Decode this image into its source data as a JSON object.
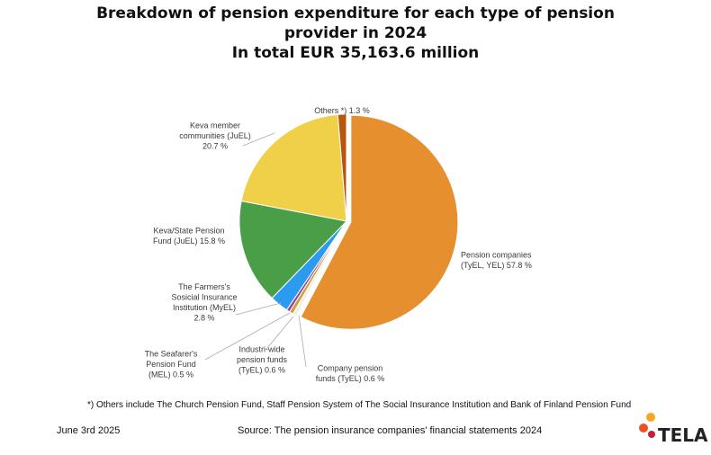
{
  "title_lines": [
    "Breakdown of pension expenditure for each type of pension",
    "provider in 2024",
    "In total EUR 35,163.6 million"
  ],
  "chart_data": {
    "type": "pie",
    "title": "Breakdown of pension expenditure for each type of pension provider in 2024",
    "subtitle": "In total EUR 35,163.6 million",
    "unit": "%",
    "slices": [
      {
        "label": "Pension companies (TyEL, YEL)",
        "value": 57.8,
        "color": "#E58F2F",
        "label_lines": [
          "Pension companies",
          "(TyEL, YEL) 57.8 %"
        ]
      },
      {
        "label": "Company pension funds (TyEL)",
        "value": 0.6,
        "color": "#F3EEE3",
        "label_lines": [
          "Company pension",
          "funds (TyEL) 0.6 %"
        ]
      },
      {
        "label": "Industri-wide pension funds (TyEL)",
        "value": 0.6,
        "color": "#C9A23D",
        "label_lines": [
          "Industri-wide",
          "pension funds",
          "(TyEL) 0.6 %"
        ]
      },
      {
        "label": "The Seafarer's Pension Fund (MEL)",
        "value": 0.5,
        "color": "#9B3FA6",
        "label_lines": [
          "The Seafarer's",
          "Pension Fund",
          "(MEL) 0.5 %"
        ]
      },
      {
        "label": "The Farmers's Sosicial Insurance Institution (MyEL)",
        "value": 2.8,
        "color": "#2B9BF0",
        "label_lines": [
          "The Farmers's",
          "Sosicial Insurance",
          "Institution (MyEL)",
          "2.8 %"
        ]
      },
      {
        "label": "Keva/State Pension Fund (JuEL)",
        "value": 15.8,
        "color": "#4A9E48",
        "label_lines": [
          "Keva/State Pension",
          "Fund (JuEL) 15.8 %"
        ]
      },
      {
        "label": "Keva member communities (JuEL)",
        "value": 20.7,
        "color": "#F0D048",
        "label_lines": [
          "Keva member",
          "communities (JuEL)",
          "20.7 %"
        ]
      },
      {
        "label": "Others *)",
        "value": 1.3,
        "color": "#B8560F",
        "label_lines": [
          "Others *) 1.3 %"
        ]
      }
    ]
  },
  "footnote": "*) Others include The Church Pension Fund, Staff Pension System of The Social Insurance Institution and Bank of Finland Pension Fund",
  "date": "June 3rd 2025",
  "source": "Source: The pension insurance companies' financial statements 2024",
  "logo_text": "TELA",
  "logo_dot_colors": [
    "#F5A623",
    "#E8541E",
    "#C61E3B"
  ]
}
